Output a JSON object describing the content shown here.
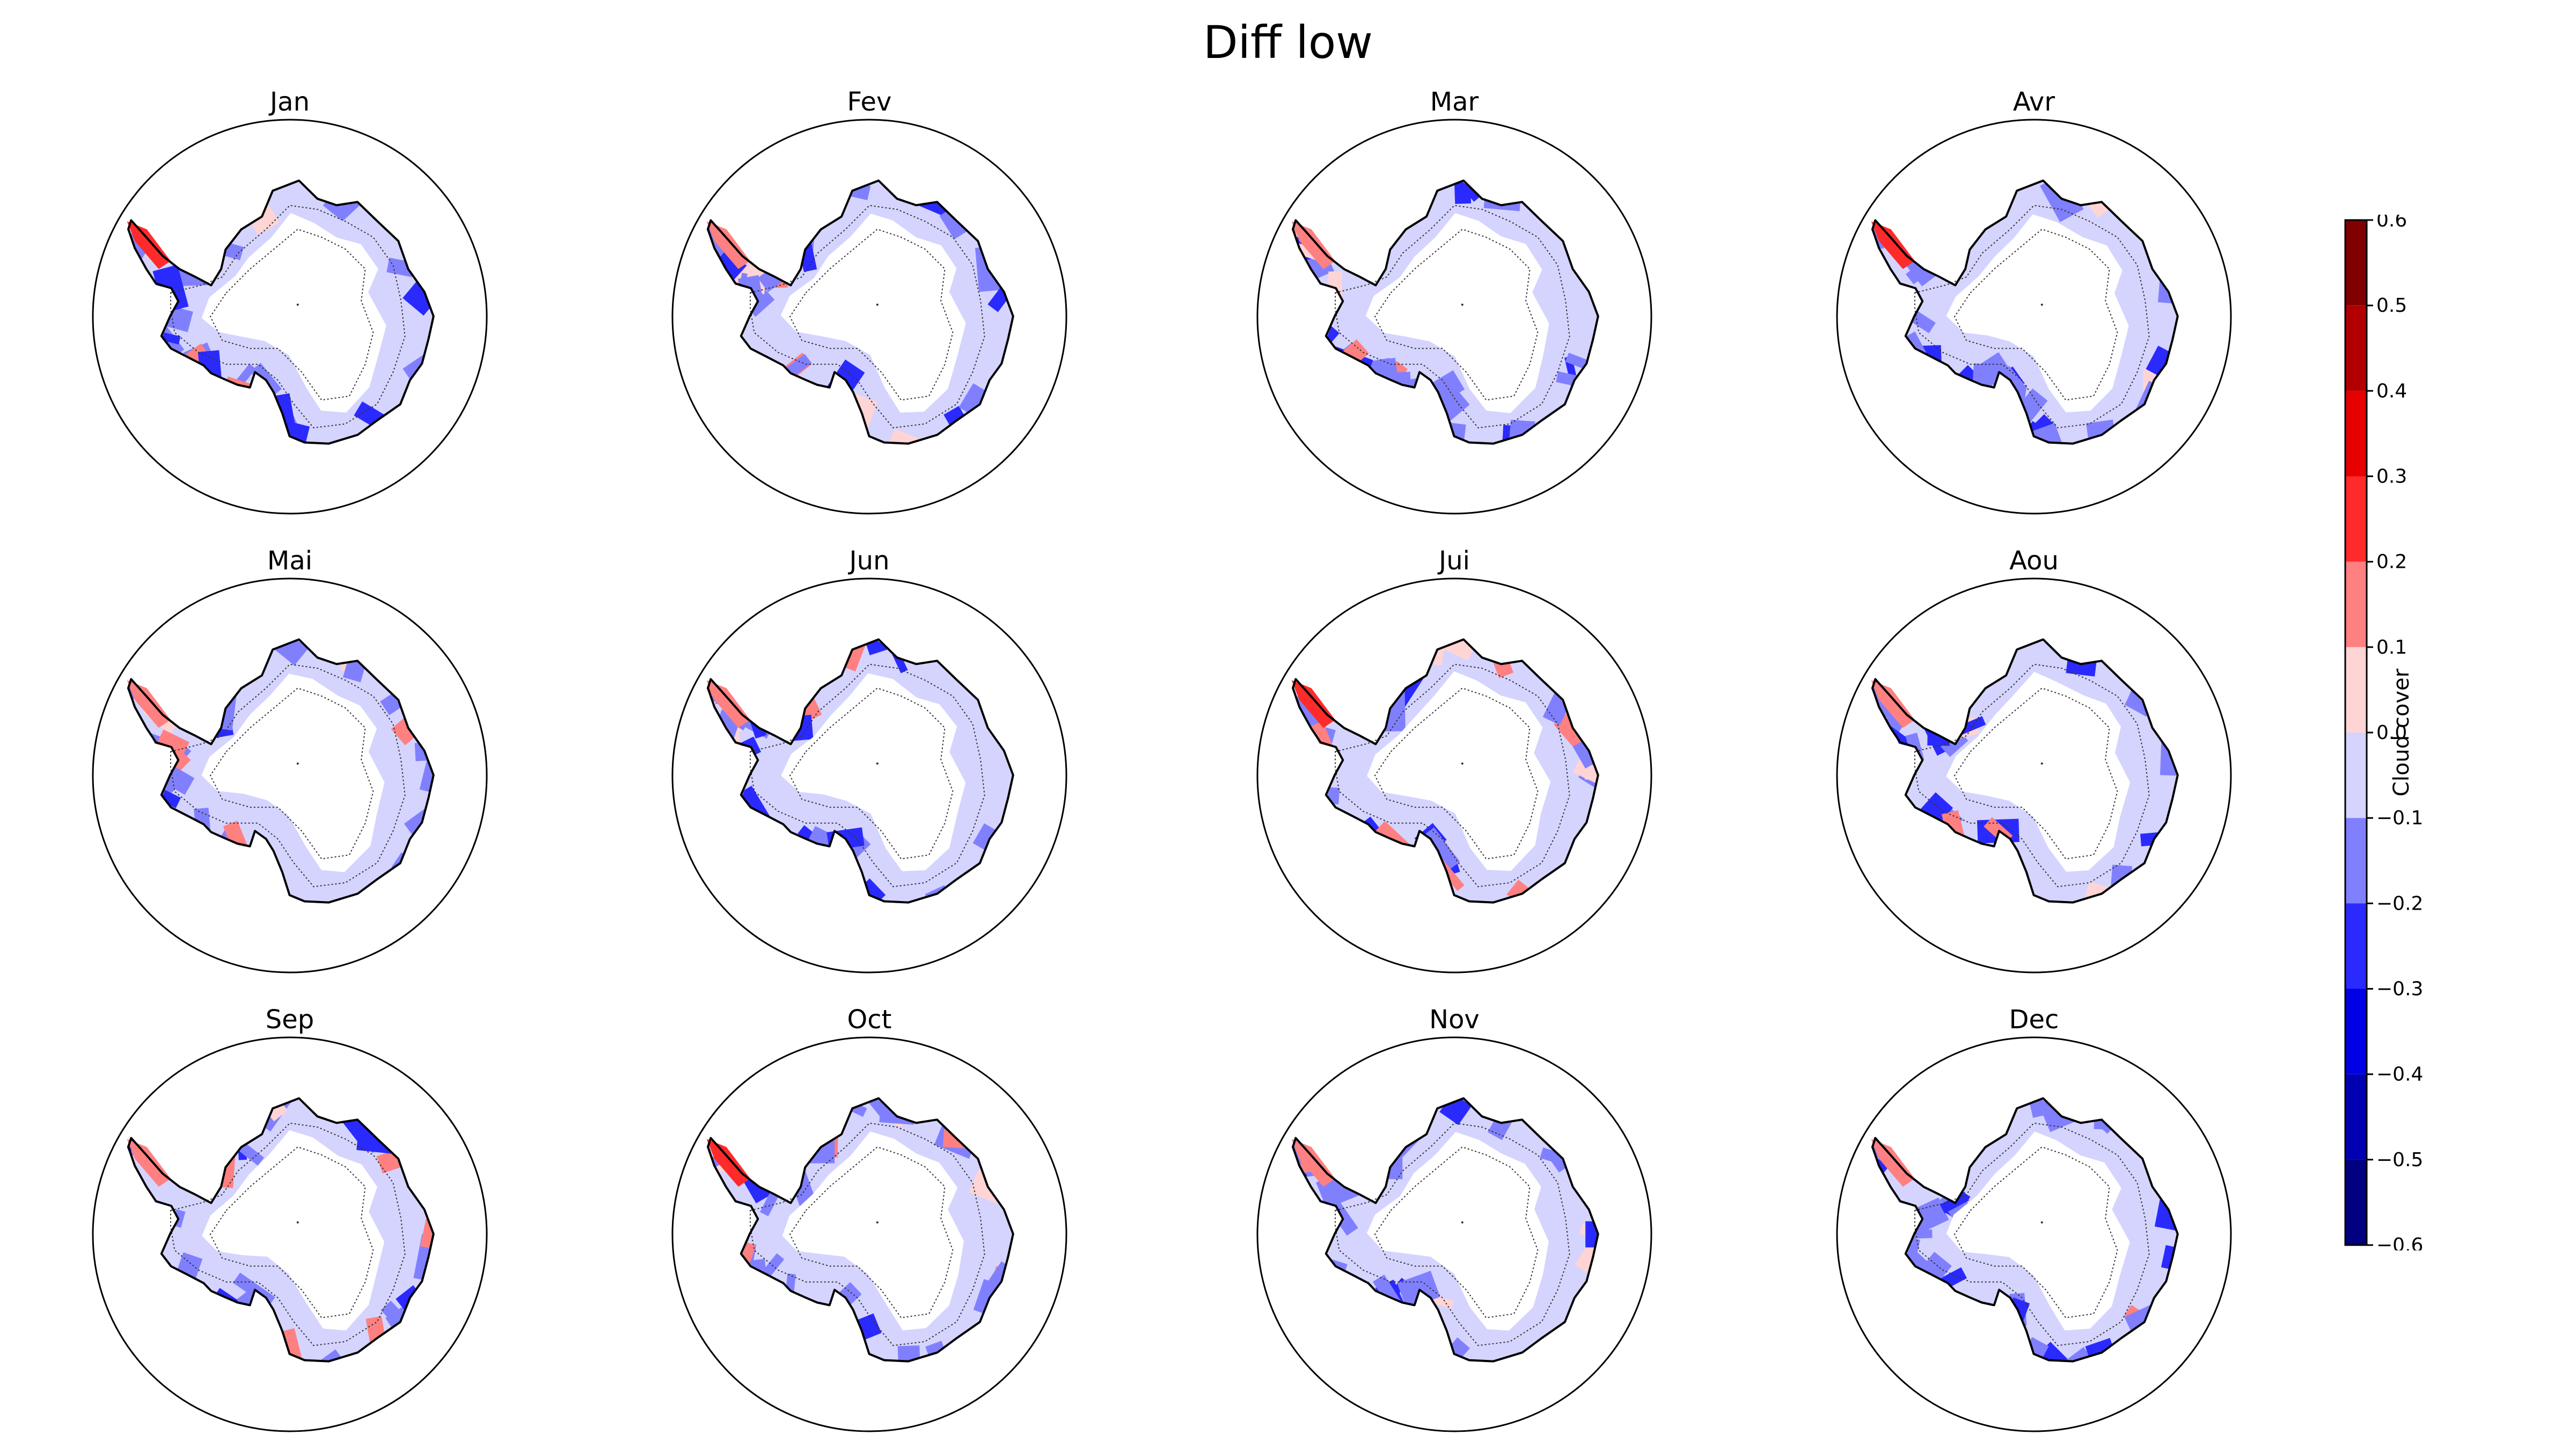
{
  "figure": {
    "title": "Diff low"
  },
  "panels": [
    {
      "title": "Jan",
      "seed": 11
    },
    {
      "title": "Fev",
      "seed": 23
    },
    {
      "title": "Mar",
      "seed": 37
    },
    {
      "title": "Avr",
      "seed": 41
    },
    {
      "title": "Mai",
      "seed": 53
    },
    {
      "title": "Jun",
      "seed": 67
    },
    {
      "title": "Jui",
      "seed": 71
    },
    {
      "title": "Aou",
      "seed": 83
    },
    {
      "title": "Sep",
      "seed": 97
    },
    {
      "title": "Oct",
      "seed": 101
    },
    {
      "title": "Nov",
      "seed": 113
    },
    {
      "title": "Dec",
      "seed": 127
    }
  ],
  "colorbar": {
    "label": "Cloud cover",
    "ticks": [
      "0.6",
      "0.5",
      "0.4",
      "0.3",
      "0.2",
      "0.1",
      "0.0",
      "−0.1",
      "−0.2",
      "−0.3",
      "−0.4",
      "−0.5",
      "−0.6"
    ],
    "range": [
      -0.6,
      0.6
    ],
    "levels": [
      {
        "from": 0.5,
        "to": 0.6,
        "color": "#800000"
      },
      {
        "from": 0.4,
        "to": 0.5,
        "color": "#b20000"
      },
      {
        "from": 0.3,
        "to": 0.4,
        "color": "#e60000"
      },
      {
        "from": 0.2,
        "to": 0.3,
        "color": "#ff2a2a"
      },
      {
        "from": 0.1,
        "to": 0.2,
        "color": "#ff8080"
      },
      {
        "from": 0.0,
        "to": 0.1,
        "color": "#ffd4d4"
      },
      {
        "from": -0.1,
        "to": 0.0,
        "color": "#d4d4ff"
      },
      {
        "from": -0.2,
        "to": -0.1,
        "color": "#8080ff"
      },
      {
        "from": -0.3,
        "to": -0.2,
        "color": "#2a2aff"
      },
      {
        "from": -0.4,
        "to": -0.3,
        "color": "#0000e6"
      },
      {
        "from": -0.5,
        "to": -0.4,
        "color": "#0000b2"
      },
      {
        "from": -0.6,
        "to": -0.5,
        "color": "#000080"
      }
    ]
  }
}
